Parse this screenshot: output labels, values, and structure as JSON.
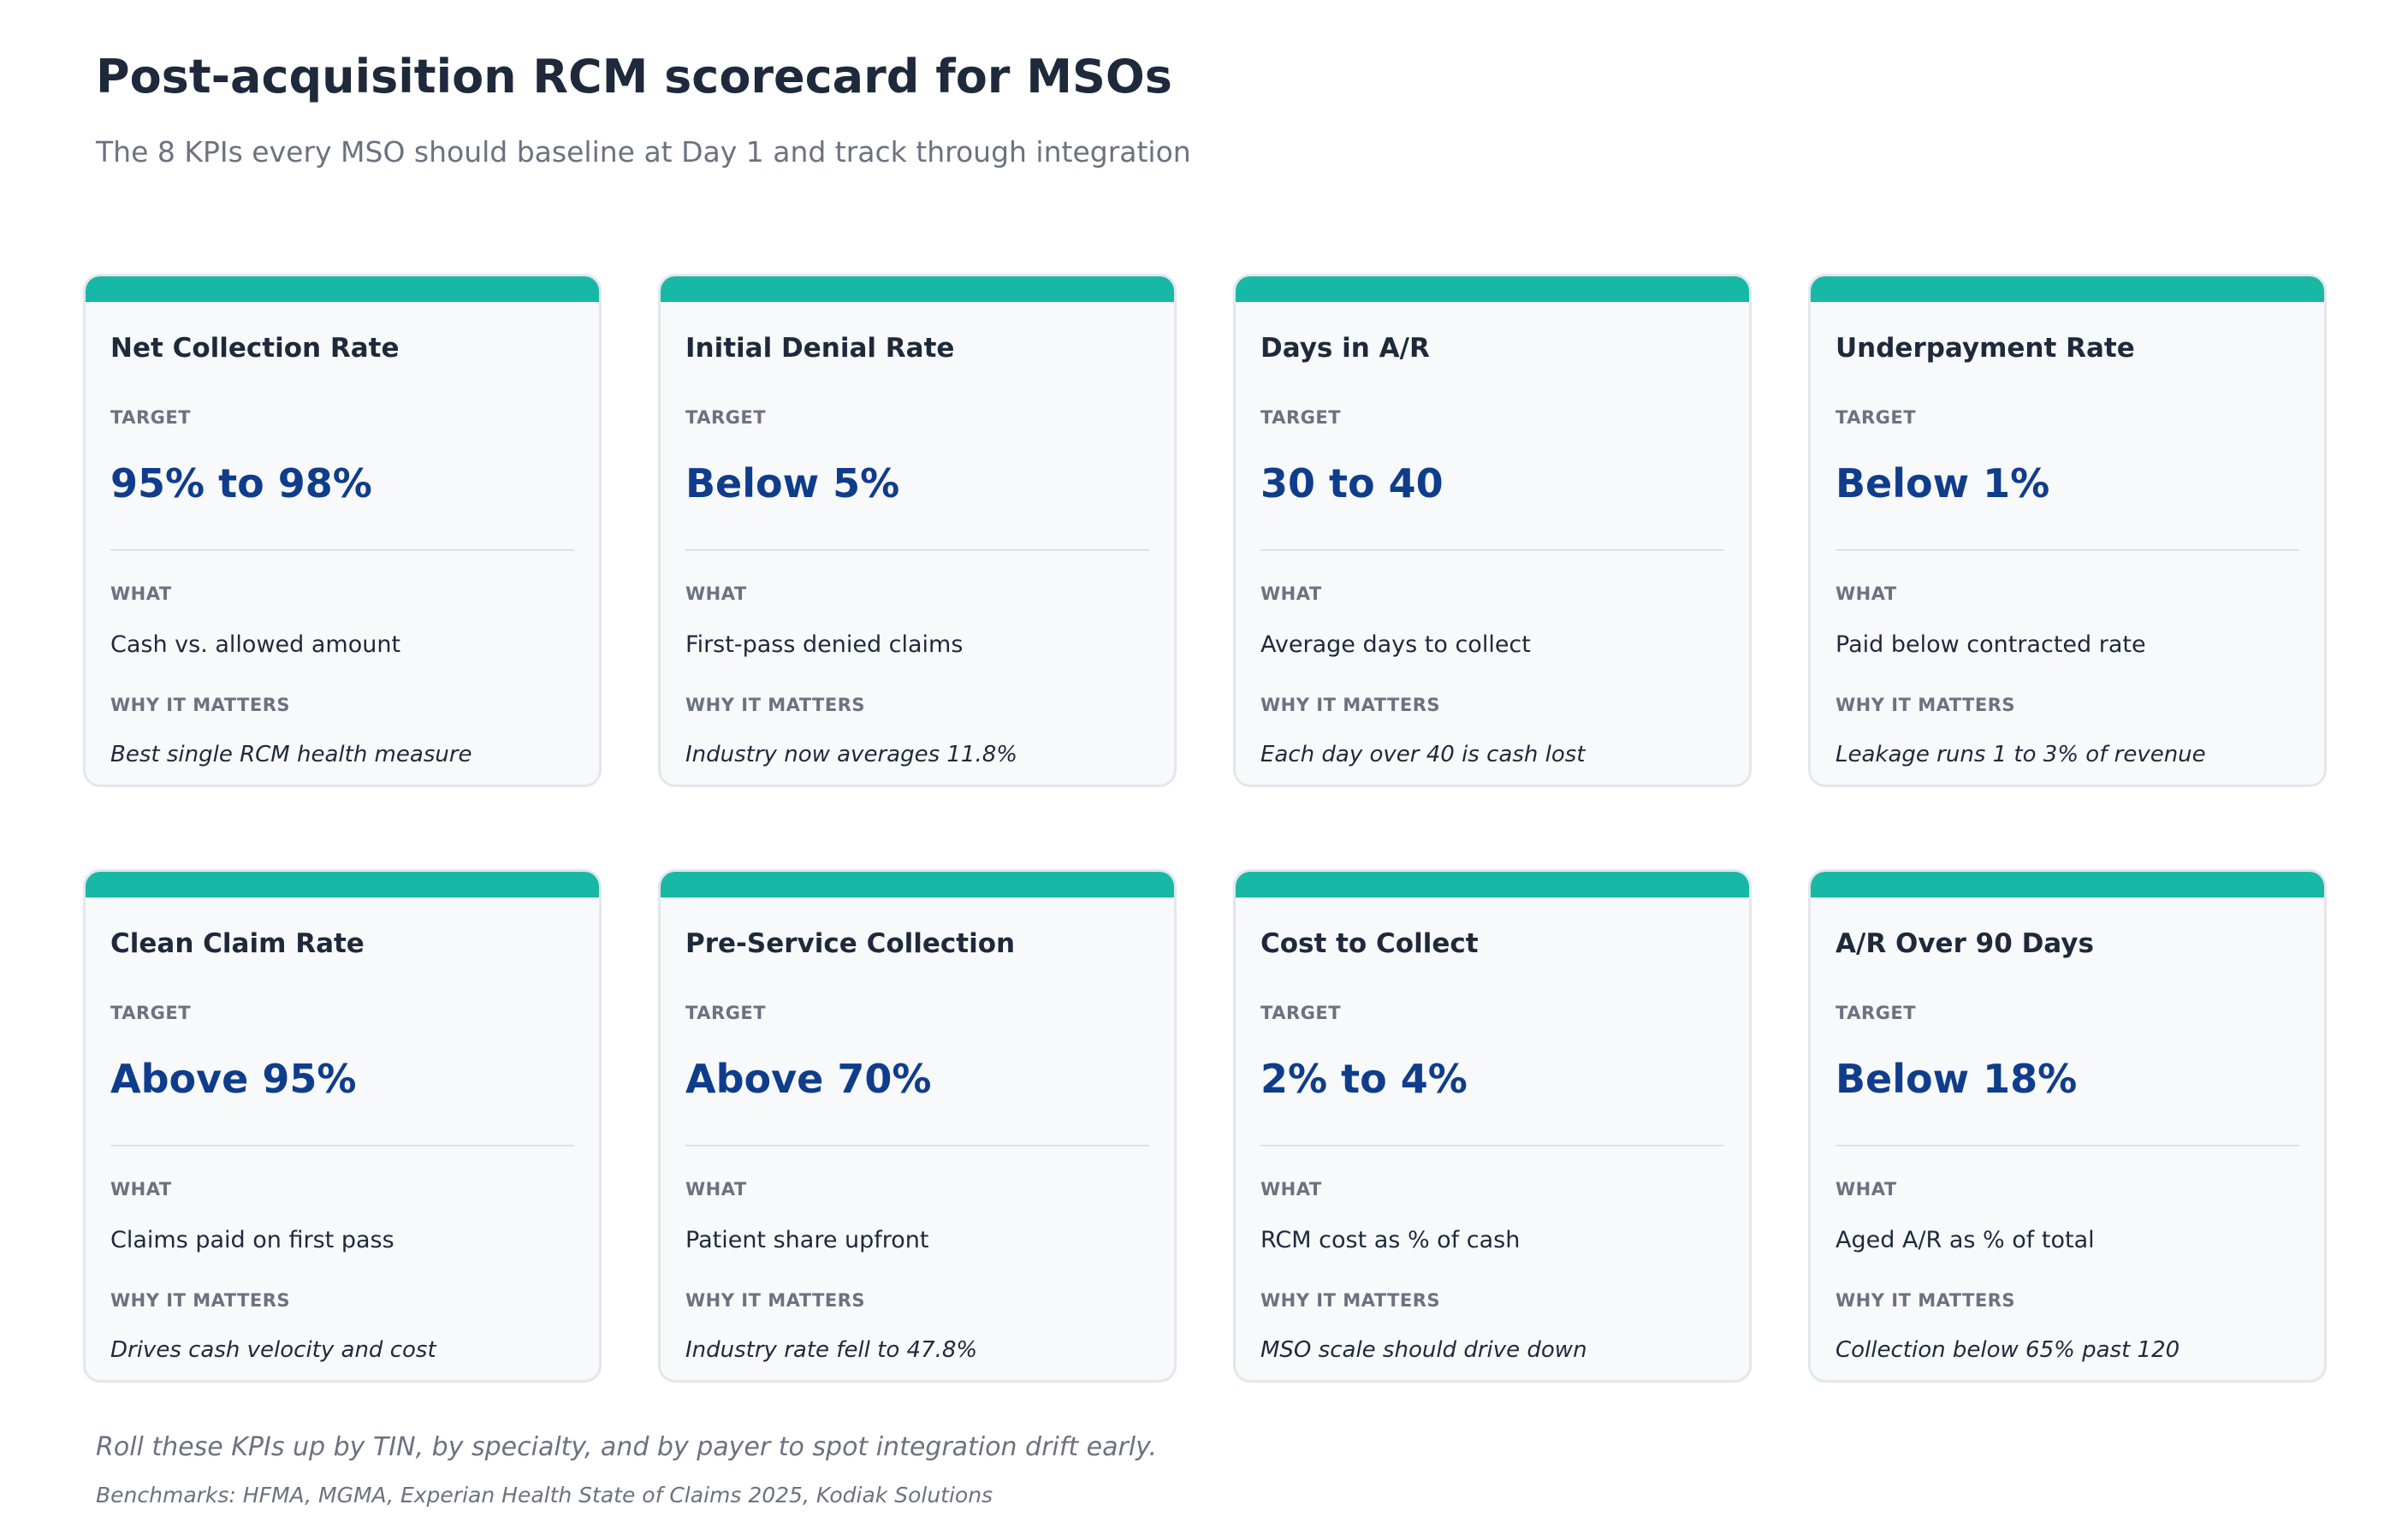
{
  "header": {
    "title": "Post-acquisition RCM scorecard for MSOs",
    "subtitle": "The 8 KPIs every MSO should baseline at Day 1 and track through integration"
  },
  "labels": {
    "target": "TARGET",
    "what": "WHAT",
    "why": "WHY IT MATTERS"
  },
  "colors": {
    "accent_bar": "#17b8a6",
    "target_value": "#0f3d8c",
    "title_text": "#1e293b",
    "muted_text": "#6b7280"
  },
  "cards": [
    {
      "title": "Net Collection Rate",
      "target": "95% to 98%",
      "what": "Cash vs. allowed amount",
      "why": "Best single RCM health measure"
    },
    {
      "title": "Initial Denial Rate",
      "target": "Below 5%",
      "what": "First-pass denied claims",
      "why": "Industry now averages 11.8%"
    },
    {
      "title": "Days in A/R",
      "target": "30 to 40",
      "what": "Average days to collect",
      "why": "Each day over 40 is cash lost"
    },
    {
      "title": "Underpayment Rate",
      "target": "Below 1%",
      "what": "Paid below contracted rate",
      "why": "Leakage runs 1 to 3% of revenue"
    },
    {
      "title": "Clean Claim Rate",
      "target": "Above 95%",
      "what": "Claims paid on first pass",
      "why": "Drives cash velocity and cost"
    },
    {
      "title": "Pre-Service Collection",
      "target": "Above 70%",
      "what": "Patient share upfront",
      "why": "Industry rate fell to 47.8%"
    },
    {
      "title": "Cost to Collect",
      "target": "2% to 4%",
      "what": "RCM cost as % of cash",
      "why": "MSO scale should drive down"
    },
    {
      "title": "A/R Over 90 Days",
      "target": "Below 18%",
      "what": "Aged A/R as % of total",
      "why": "Collection below 65% past 120"
    }
  ],
  "footer": {
    "note": "Roll these KPIs up by TIN, by specialty, and by payer to spot integration drift early.",
    "source": "Benchmarks: HFMA, MGMA, Experian Health State of Claims 2025, Kodiak Solutions"
  }
}
